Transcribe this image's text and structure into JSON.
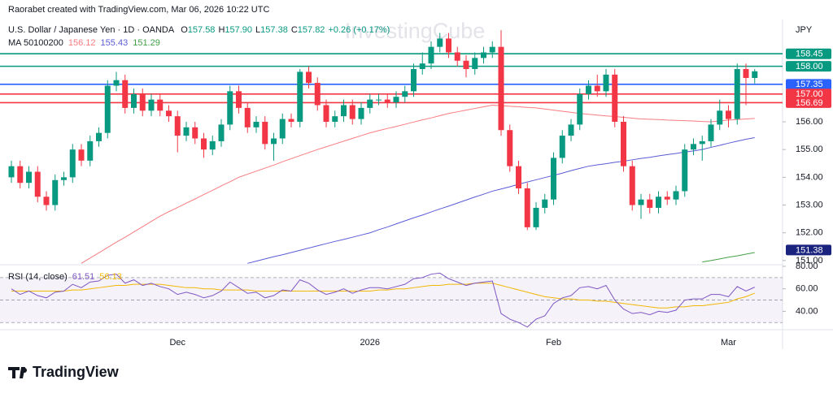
{
  "header": {
    "attribution": "Raorabet created with TradingView.com, Mar 06, 2026 10:22 UTC",
    "symbol": "U.S. Dollar / Japanese Yen · 1D · OANDA",
    "change": "+0.26 (+0.17%)",
    "ma_title": "MA 50100200",
    "currency": "JPY",
    "watermark": "InvestingCube",
    "brand": "TradingView"
  },
  "chart_data": {
    "type": "candlestick",
    "categories": [
      null,
      null,
      null,
      null,
      null,
      null,
      null,
      null,
      null,
      null,
      null,
      null,
      null,
      null,
      null,
      null,
      null,
      null,
      null,
      "Dec",
      null,
      null,
      null,
      null,
      null,
      null,
      null,
      null,
      null,
      null,
      null,
      null,
      null,
      null,
      null,
      null,
      null,
      null,
      null,
      null,
      null,
      "2026",
      null,
      null,
      null,
      null,
      null,
      null,
      null,
      null,
      null,
      null,
      null,
      null,
      null,
      null,
      null,
      null,
      null,
      null,
      null,
      null,
      "Feb",
      null,
      null,
      null,
      null,
      null,
      null,
      null,
      null,
      null,
      null,
      null,
      null,
      null,
      null,
      null,
      null,
      null,
      null,
      null,
      "Mar",
      null,
      null,
      null
    ],
    "open": [
      154.0,
      154.4,
      153.8,
      154.2,
      153.3,
      153.0,
      153.9,
      154.0,
      155.0,
      154.6,
      155.3,
      155.6,
      157.3,
      157.5,
      156.5,
      157.0,
      156.4,
      156.8,
      156.4,
      156.2,
      155.5,
      155.8,
      155.4,
      155.0,
      155.3,
      155.9,
      157.1,
      156.5,
      155.8,
      156.0,
      155.2,
      155.4,
      156.1,
      156.0,
      157.8,
      157.4,
      156.6,
      156.0,
      156.2,
      156.6,
      156.1,
      156.5,
      156.8,
      156.8,
      156.7,
      156.9,
      157.1,
      157.9,
      158.1,
      158.7,
      159.0,
      158.5,
      158.2,
      157.9,
      158.3,
      158.5,
      158.7,
      155.7,
      154.4,
      153.6,
      152.2,
      152.9,
      153.2,
      154.7,
      155.5,
      155.9,
      157.0,
      157.3,
      157.1,
      157.7,
      156.0,
      154.4,
      153.0,
      153.2,
      152.9,
      153.3,
      153.2,
      153.5,
      155.0,
      155.2,
      155.3,
      155.9,
      156.4,
      156.1,
      157.9,
      157.58
    ],
    "high": [
      154.6,
      154.6,
      154.4,
      154.4,
      153.5,
      154.1,
      154.2,
      155.2,
      155.2,
      155.5,
      155.8,
      157.5,
      157.8,
      157.7,
      157.2,
      157.2,
      157.0,
      157.0,
      156.6,
      156.4,
      156.0,
      156.0,
      155.6,
      155.5,
      156.1,
      157.3,
      157.3,
      156.7,
      156.2,
      156.2,
      155.6,
      156.3,
      156.3,
      157.9,
      158.0,
      157.6,
      156.8,
      156.4,
      156.8,
      156.8,
      156.7,
      157.0,
      157.0,
      157.0,
      157.1,
      157.3,
      158.1,
      158.5,
      158.9,
      159.2,
      159.2,
      158.7,
      158.4,
      158.5,
      158.7,
      158.9,
      159.3,
      155.9,
      154.6,
      153.8,
      153.1,
      153.4,
      154.9,
      155.7,
      156.1,
      157.2,
      157.5,
      157.7,
      157.9,
      157.9,
      156.2,
      154.6,
      153.4,
      153.4,
      153.5,
      153.5,
      153.7,
      155.2,
      155.4,
      155.5,
      156.1,
      156.8,
      156.6,
      158.1,
      158.1,
      157.9
    ],
    "low": [
      153.8,
      153.6,
      153.6,
      153.1,
      152.8,
      152.8,
      153.7,
      153.8,
      154.4,
      154.4,
      155.1,
      155.4,
      157.1,
      156.3,
      156.3,
      156.2,
      156.2,
      156.2,
      156.0,
      154.9,
      155.3,
      155.2,
      154.7,
      154.8,
      155.1,
      155.7,
      156.3,
      155.6,
      155.6,
      155.0,
      154.6,
      155.2,
      155.8,
      155.8,
      157.2,
      156.4,
      155.8,
      155.8,
      156.0,
      155.9,
      155.9,
      156.3,
      156.6,
      156.5,
      156.5,
      156.7,
      156.9,
      157.7,
      157.9,
      158.5,
      158.3,
      158.0,
      157.6,
      157.7,
      158.1,
      158.3,
      155.5,
      154.2,
      153.4,
      152.1,
      152.1,
      152.7,
      153.0,
      154.5,
      155.3,
      155.7,
      156.8,
      156.9,
      156.9,
      155.8,
      154.2,
      152.8,
      152.5,
      152.7,
      152.7,
      153.0,
      153.0,
      153.3,
      154.8,
      154.6,
      155.1,
      155.7,
      155.8,
      155.9,
      156.6,
      157.38
    ],
    "close": [
      154.4,
      153.8,
      154.2,
      153.3,
      153.0,
      153.9,
      154.0,
      155.0,
      154.6,
      155.3,
      155.6,
      157.3,
      157.5,
      156.5,
      157.0,
      156.4,
      156.8,
      156.4,
      156.2,
      155.5,
      155.8,
      155.4,
      155.0,
      155.3,
      155.9,
      157.1,
      156.5,
      155.8,
      156.0,
      155.2,
      155.4,
      156.1,
      156.0,
      157.8,
      157.4,
      156.6,
      156.0,
      156.2,
      156.6,
      156.1,
      156.5,
      156.8,
      156.8,
      156.7,
      156.9,
      157.1,
      157.9,
      158.1,
      158.7,
      159.0,
      158.5,
      158.2,
      157.9,
      158.3,
      158.5,
      158.7,
      155.7,
      154.4,
      153.6,
      152.2,
      152.9,
      153.2,
      154.7,
      155.5,
      155.9,
      157.0,
      157.3,
      157.1,
      157.7,
      156.0,
      154.4,
      153.0,
      153.2,
      152.9,
      153.3,
      153.2,
      153.5,
      155.0,
      155.2,
      155.3,
      155.9,
      156.4,
      156.1,
      157.9,
      157.58,
      157.82
    ],
    "ohlc_keys": [
      "O",
      "H",
      "L",
      "C"
    ],
    "last_labels": [
      "157.58",
      "157.90",
      "157.38",
      "157.82"
    ],
    "up_color": "#089981",
    "down_color": "#f23645",
    "ylim": [
      150.88,
      159.51
    ],
    "yticks": [
      {
        "value": 151,
        "label": "151.00"
      },
      {
        "value": 152,
        "label": "152.00"
      },
      {
        "value": 153,
        "label": "153.00"
      },
      {
        "value": 154,
        "label": "154.00"
      },
      {
        "value": 155,
        "label": "155.00"
      },
      {
        "value": 156,
        "label": "156.00"
      }
    ],
    "series": [
      {
        "color": "#f77c80",
        "values": [
          null,
          null,
          null,
          null,
          null,
          null,
          null,
          null,
          150.9,
          151.09,
          151.28,
          151.47,
          151.66,
          151.84,
          152.03,
          152.22,
          152.41,
          152.6,
          152.76,
          152.91,
          153.07,
          153.22,
          153.38,
          153.53,
          153.69,
          153.84,
          154.0,
          154.11,
          154.22,
          154.33,
          154.44,
          154.56,
          154.67,
          154.78,
          154.89,
          155.0,
          155.1,
          155.2,
          155.3,
          155.4,
          155.5,
          155.6,
          155.68,
          155.76,
          155.83,
          155.91,
          155.99,
          156.07,
          156.14,
          156.22,
          156.3,
          156.36,
          156.42,
          156.48,
          156.54,
          156.6,
          156.58,
          156.56,
          156.54,
          156.52,
          156.5,
          156.46,
          156.42,
          156.38,
          156.34,
          156.3,
          156.27,
          156.24,
          156.21,
          156.19,
          156.16,
          156.13,
          156.1,
          156.09,
          156.08,
          156.06,
          156.05,
          156.04,
          156.03,
          156.01,
          156.0,
          156.03,
          156.06,
          156.08,
          156.1,
          156.12
        ]
      },
      {
        "color": "#5b5bd6",
        "values": [
          null,
          null,
          null,
          null,
          null,
          null,
          null,
          null,
          null,
          null,
          null,
          null,
          null,
          null,
          null,
          null,
          null,
          null,
          null,
          null,
          null,
          null,
          null,
          null,
          null,
          null,
          null,
          150.9,
          150.98,
          151.06,
          151.14,
          151.21,
          151.29,
          151.37,
          151.45,
          151.53,
          151.61,
          151.69,
          151.76,
          151.84,
          151.92,
          152.0,
          152.11,
          152.21,
          152.32,
          152.43,
          152.54,
          152.64,
          152.75,
          152.86,
          152.96,
          153.07,
          153.18,
          153.29,
          153.39,
          153.5,
          153.58,
          153.66,
          153.75,
          153.83,
          153.91,
          153.99,
          154.07,
          154.15,
          154.24,
          154.32,
          154.4,
          154.45,
          154.49,
          154.54,
          154.58,
          154.63,
          154.68,
          154.72,
          154.77,
          154.82,
          154.86,
          154.91,
          154.95,
          155.0,
          155.08,
          155.15,
          155.23,
          155.3,
          155.37,
          155.43
        ]
      },
      {
        "color": "#43a047",
        "values": [
          null,
          null,
          null,
          null,
          null,
          null,
          null,
          null,
          null,
          null,
          null,
          null,
          null,
          null,
          null,
          null,
          null,
          null,
          null,
          null,
          null,
          null,
          null,
          null,
          null,
          null,
          null,
          null,
          null,
          null,
          null,
          null,
          null,
          null,
          null,
          null,
          null,
          null,
          null,
          null,
          null,
          null,
          null,
          null,
          null,
          null,
          null,
          null,
          null,
          null,
          null,
          null,
          null,
          null,
          null,
          null,
          null,
          null,
          null,
          null,
          null,
          null,
          null,
          null,
          null,
          null,
          null,
          null,
          null,
          null,
          null,
          null,
          null,
          null,
          null,
          null,
          null,
          null,
          null,
          150.95,
          151.0,
          151.06,
          151.12,
          151.17,
          151.23,
          151.29
        ]
      }
    ],
    "levels": [
      {
        "value": 158.45,
        "label": "158.45",
        "color": "#089981",
        "line": true
      },
      {
        "value": 158.0,
        "label": "158.00",
        "color": "#089981",
        "line": true
      },
      {
        "value": 157.35,
        "label": "157.35",
        "color": "#2962ff",
        "line": true
      },
      {
        "value": 157.0,
        "label": "157.00",
        "color": "#f23645",
        "line": true
      },
      {
        "value": 156.69,
        "label": "156.69",
        "color": "#f23645",
        "line": true
      },
      {
        "value": 151.38,
        "label": "151.38",
        "color": "#1a237e",
        "line": false
      }
    ],
    "rsi": {
      "title": "RSI (14, close)",
      "color": "#7e57c2",
      "values": [
        60,
        55,
        58,
        54,
        52,
        57,
        58,
        64,
        61,
        66,
        67,
        72,
        73,
        65,
        68,
        63,
        65,
        62,
        60,
        55,
        57,
        55,
        52,
        54,
        58,
        66,
        61,
        56,
        57,
        52,
        54,
        59,
        58,
        68,
        65,
        59,
        55,
        57,
        60,
        56,
        59,
        61,
        61,
        60,
        62,
        64,
        69,
        70,
        73,
        74,
        69,
        66,
        63,
        65,
        66,
        67,
        38,
        33,
        30,
        26,
        33,
        36,
        47,
        52,
        54,
        61,
        62,
        60,
        63,
        50,
        42,
        38,
        39,
        37,
        40,
        39,
        41,
        50,
        51,
        51,
        55,
        55,
        53,
        62,
        58,
        61.51
      ],
      "ma_color": "#f2b705",
      "ma_values": [
        58,
        58,
        58,
        58,
        58,
        58,
        58,
        59,
        59,
        60,
        61,
        62,
        63,
        63,
        64,
        64,
        64,
        64,
        63,
        62,
        61,
        61,
        60,
        60,
        59,
        59,
        59,
        59,
        58,
        58,
        58,
        58,
        58,
        58,
        58,
        58,
        58,
        58,
        58,
        58,
        58,
        58,
        59,
        59,
        60,
        60,
        61,
        62,
        63,
        63,
        64,
        64,
        64,
        65,
        65,
        65,
        63,
        61,
        59,
        57,
        55,
        53,
        52,
        51,
        51,
        50,
        50,
        49,
        49,
        48,
        47,
        46,
        45,
        44,
        43,
        43,
        44,
        44,
        45,
        45,
        46,
        47,
        48,
        51,
        53,
        56.13
      ],
      "levels": [
        70,
        50,
        30
      ],
      "ylim": [
        24.4,
        80
      ],
      "yticks": [
        {
          "value": 80,
          "label": "80.00"
        },
        {
          "value": 60,
          "label": "60.00"
        },
        {
          "value": 40,
          "label": "40.00"
        }
      ]
    }
  }
}
